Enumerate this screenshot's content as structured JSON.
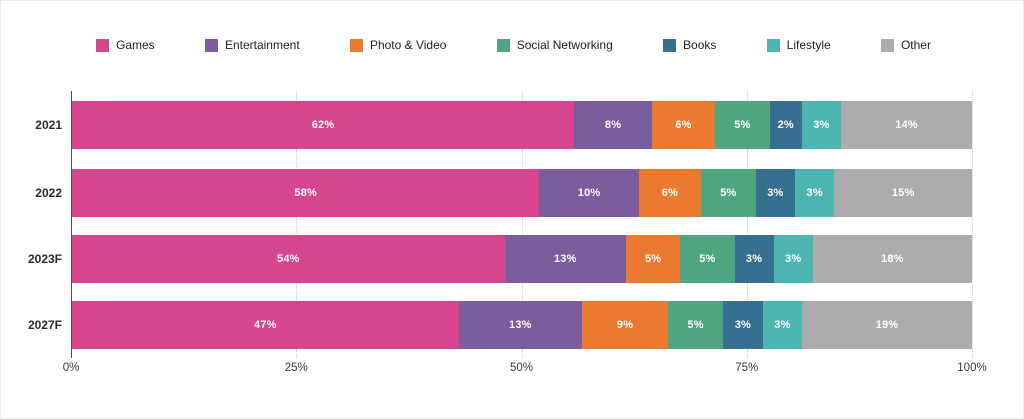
{
  "chart_data": {
    "type": "bar",
    "orientation": "horizontal-stacked",
    "title": "",
    "categories": [
      "2021",
      "2022",
      "2023F",
      "2027F"
    ],
    "series": [
      {
        "name": "Games",
        "color": "#D5468E",
        "values": [
          62,
          58,
          54,
          47
        ]
      },
      {
        "name": "Entertainment",
        "color": "#7B5C9D",
        "values": [
          8,
          10,
          13,
          13
        ]
      },
      {
        "name": "Photo & Video",
        "color": "#E97A2F",
        "values": [
          6,
          6,
          5,
          9
        ]
      },
      {
        "name": "Social Networking",
        "color": "#4FA57F",
        "values": [
          5,
          5,
          5,
          5
        ]
      },
      {
        "name": "Books",
        "color": "#366F8F",
        "values": [
          2,
          3,
          3,
          3
        ]
      },
      {
        "name": "Lifestyle",
        "color": "#4DB5B0",
        "values": [
          3,
          3,
          3,
          3
        ]
      },
      {
        "name": "Other",
        "color": "#ACACAC",
        "values": [
          14,
          15,
          18,
          19
        ]
      }
    ],
    "value_suffix": "%",
    "x_ticks": [
      {
        "label": "0%",
        "pct": 0
      },
      {
        "label": "25%",
        "pct": 25
      },
      {
        "label": "50%",
        "pct": 50
      },
      {
        "label": "75%",
        "pct": 75
      },
      {
        "label": "100%",
        "pct": 100
      }
    ],
    "xlim": [
      0,
      100
    ],
    "legend_position": "top",
    "grid": "vertical-dotted",
    "bars_normalized_to_100": true
  },
  "style": {
    "axis_line_color": "#4d4d4d",
    "gridline_color": "#cdcdcd",
    "background": "#ffffff"
  }
}
